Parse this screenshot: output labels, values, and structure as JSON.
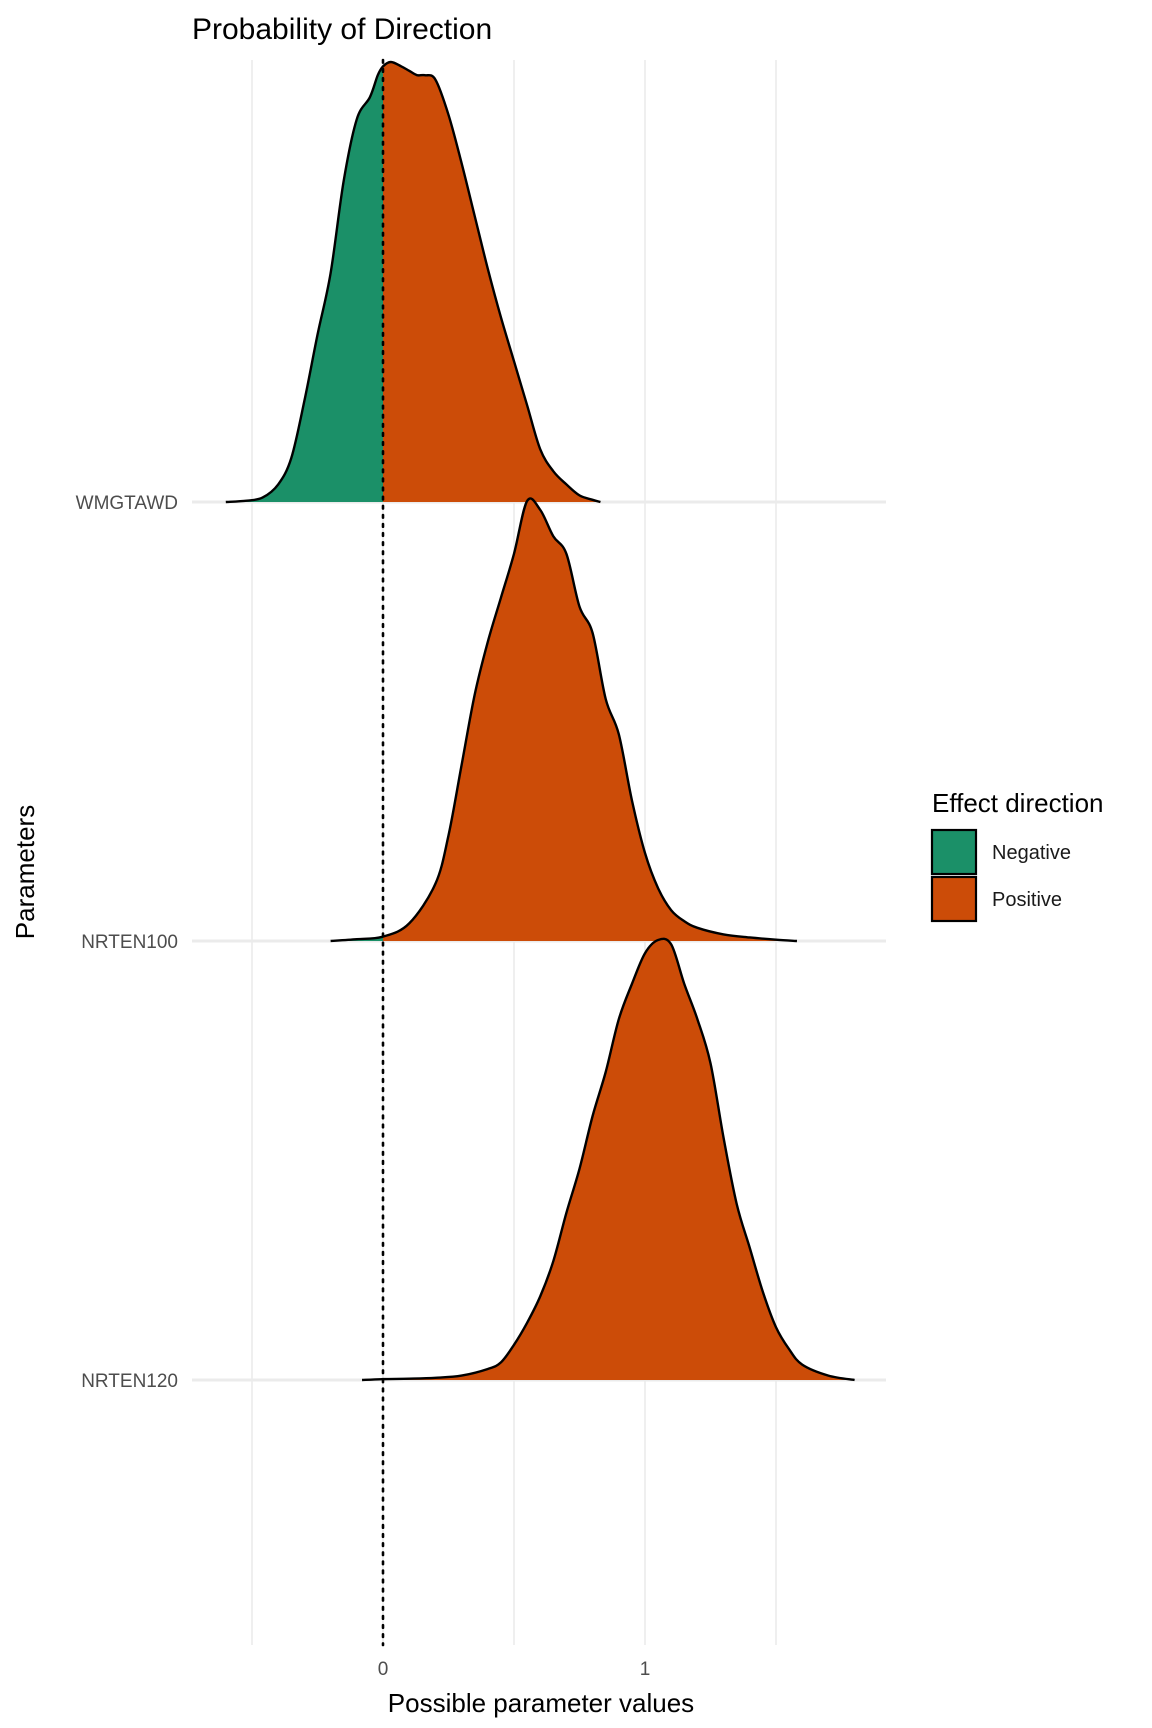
{
  "chart_data": {
    "type": "ridgeline-density",
    "title": "Probability of Direction",
    "xlabel": "Possible parameter values",
    "ylabel": "Parameters",
    "x_ticks": [
      0,
      1
    ],
    "x_gridlines": [
      -0.5,
      0,
      0.5,
      1,
      1.5
    ],
    "xlim": [
      -0.7,
      1.9
    ],
    "reference_line_x": 0,
    "grid": true,
    "legend": {
      "title": "Effect direction",
      "placement": "right",
      "entries": [
        {
          "name": "Negative",
          "color": "#1b9068"
        },
        {
          "name": "Positive",
          "color": "#cc4c08"
        }
      ]
    },
    "series": [
      {
        "name": "WMGTAWD",
        "x": [
          -0.6,
          -0.52,
          -0.46,
          -0.4,
          -0.35,
          -0.3,
          -0.25,
          -0.2,
          -0.15,
          -0.1,
          -0.05,
          -0.02,
          0.0,
          0.03,
          0.07,
          0.1,
          0.13,
          0.16,
          0.2,
          0.25,
          0.3,
          0.35,
          0.4,
          0.45,
          0.5,
          0.55,
          0.6,
          0.65,
          0.7,
          0.75,
          0.8,
          0.83
        ],
        "density": [
          0.0,
          0.003,
          0.01,
          0.04,
          0.1,
          0.23,
          0.38,
          0.52,
          0.73,
          0.87,
          0.92,
          0.97,
          0.99,
          1.0,
          0.99,
          0.98,
          0.97,
          0.97,
          0.96,
          0.88,
          0.77,
          0.65,
          0.53,
          0.42,
          0.32,
          0.22,
          0.12,
          0.07,
          0.04,
          0.015,
          0.005,
          0.0
        ]
      },
      {
        "name": "NRTEN100",
        "x": [
          -0.2,
          -0.1,
          0.0,
          0.1,
          0.2,
          0.25,
          0.3,
          0.35,
          0.4,
          0.45,
          0.5,
          0.55,
          0.6,
          0.65,
          0.7,
          0.75,
          0.8,
          0.85,
          0.9,
          0.95,
          1.0,
          1.05,
          1.1,
          1.15,
          1.2,
          1.3,
          1.4,
          1.5,
          1.58
        ],
        "density": [
          0.0,
          0.004,
          0.01,
          0.04,
          0.13,
          0.24,
          0.4,
          0.56,
          0.68,
          0.78,
          0.88,
          1.0,
          0.98,
          0.92,
          0.88,
          0.76,
          0.7,
          0.55,
          0.47,
          0.32,
          0.2,
          0.12,
          0.07,
          0.045,
          0.03,
          0.015,
          0.008,
          0.003,
          0.0
        ]
      },
      {
        "name": "NRTEN120",
        "x": [
          -0.08,
          0.0,
          0.1,
          0.2,
          0.3,
          0.4,
          0.45,
          0.5,
          0.55,
          0.6,
          0.65,
          0.7,
          0.75,
          0.8,
          0.85,
          0.9,
          0.95,
          1.0,
          1.05,
          1.1,
          1.15,
          1.2,
          1.25,
          1.3,
          1.35,
          1.4,
          1.45,
          1.5,
          1.55,
          1.6,
          1.7,
          1.8
        ],
        "density": [
          0.0,
          0.002,
          0.003,
          0.005,
          0.01,
          0.025,
          0.04,
          0.08,
          0.13,
          0.19,
          0.27,
          0.38,
          0.48,
          0.6,
          0.7,
          0.82,
          0.9,
          0.97,
          1.0,
          0.99,
          0.9,
          0.82,
          0.72,
          0.55,
          0.4,
          0.3,
          0.2,
          0.12,
          0.07,
          0.035,
          0.01,
          0.0
        ]
      }
    ]
  }
}
